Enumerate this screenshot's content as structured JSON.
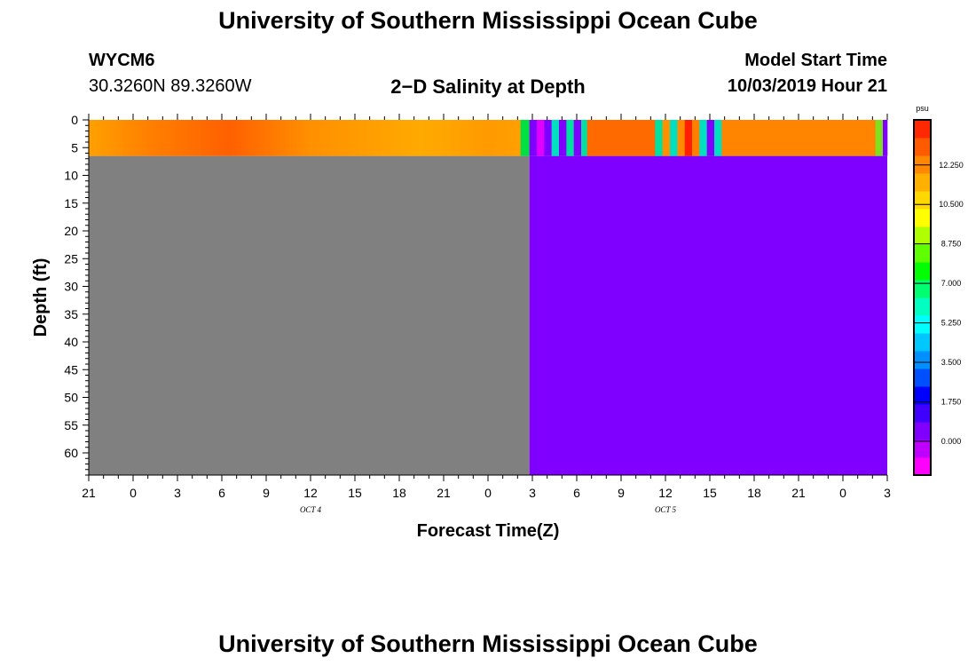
{
  "header": {
    "main_title": "University of Southern Mississippi Ocean Cube",
    "station_id": "WYCM6",
    "station_coords": "30.3260N 89.3260W",
    "plot_title": "2−D Salinity at Depth",
    "model_start_label": "Model Start Time",
    "model_start_value": "10/03/2019 Hour 21"
  },
  "footer": {
    "bottom_title": "University of Southern Mississippi Ocean Cube"
  },
  "chart_data": {
    "type": "heatmap",
    "xlabel": "Forecast Time(Z)",
    "ylabel": "Depth (ft)",
    "x_tick_labels": [
      "21",
      "0",
      "3",
      "6",
      "9",
      "12",
      "15",
      "18",
      "21",
      "0",
      "3",
      "6",
      "9",
      "12",
      "15",
      "18",
      "21",
      "0",
      "3"
    ],
    "x_date_labels": [
      {
        "text": "OCT 4",
        "at_hour": 15
      },
      {
        "text": "OCT 5",
        "at_hour": 39
      }
    ],
    "x_range_hours": [
      0,
      54
    ],
    "y_tick_labels": [
      "0",
      "5",
      "10",
      "15",
      "20",
      "25",
      "30",
      "35",
      "40",
      "45",
      "50",
      "55",
      "60"
    ],
    "y_range_ft": [
      0,
      64
    ],
    "surface_layer_depth_ft": 6.5,
    "no_data_color": "#808080",
    "deep_fill_color": "#7f00ff",
    "deep_fill_start_hour": 29.8,
    "surface_segments": [
      {
        "start": 0,
        "end": 29.2,
        "color": "gradient"
      },
      {
        "start": 29.2,
        "end": 29.8,
        "color": "#00e040"
      },
      {
        "start": 29.8,
        "end": 30.3,
        "color": "#7f00ff"
      },
      {
        "start": 30.3,
        "end": 30.8,
        "color": "#e000ff"
      },
      {
        "start": 30.8,
        "end": 31.3,
        "color": "#7f00ff"
      },
      {
        "start": 31.3,
        "end": 31.8,
        "color": "#00e0c0"
      },
      {
        "start": 31.8,
        "end": 32.3,
        "color": "#7f00ff"
      },
      {
        "start": 32.3,
        "end": 32.8,
        "color": "#00e0a0"
      },
      {
        "start": 32.8,
        "end": 33.3,
        "color": "#7f00ff"
      },
      {
        "start": 33.3,
        "end": 33.7,
        "color": "#00e0a0"
      },
      {
        "start": 33.7,
        "end": 38.3,
        "color": "#ff6a00"
      },
      {
        "start": 38.3,
        "end": 38.8,
        "color": "#00e0a0"
      },
      {
        "start": 38.8,
        "end": 39.3,
        "color": "#ff9000"
      },
      {
        "start": 39.3,
        "end": 39.8,
        "color": "#00e0c0"
      },
      {
        "start": 39.8,
        "end": 40.3,
        "color": "#ff8c00"
      },
      {
        "start": 40.3,
        "end": 40.8,
        "color": "#ff2000"
      },
      {
        "start": 40.8,
        "end": 41.3,
        "color": "#ff8000"
      },
      {
        "start": 41.3,
        "end": 41.8,
        "color": "#00e0c0"
      },
      {
        "start": 41.8,
        "end": 42.3,
        "color": "#7f00ff"
      },
      {
        "start": 42.3,
        "end": 42.8,
        "color": "#00e0c0"
      },
      {
        "start": 42.8,
        "end": 53.2,
        "color": "#ff8400"
      },
      {
        "start": 53.2,
        "end": 53.7,
        "color": "#80e020"
      },
      {
        "start": 53.7,
        "end": 54,
        "color": "#7f00ff"
      }
    ],
    "surface_gradient": [
      {
        "hour": 0,
        "color": "#ffa000"
      },
      {
        "hour": 4,
        "color": "#ff8000"
      },
      {
        "hour": 9.5,
        "color": "#ff6000"
      },
      {
        "hour": 15,
        "color": "#ff9000"
      },
      {
        "hour": 22.5,
        "color": "#ffaa00"
      },
      {
        "hour": 27,
        "color": "#ff9a00"
      },
      {
        "hour": 29.2,
        "color": "#ffa000"
      }
    ],
    "colorbar": {
      "unit": "psu",
      "labels": [
        "12.250",
        "10.500",
        "8.750",
        "7.000",
        "5.250",
        "3.500",
        "1.750",
        "0.000"
      ],
      "label_values": [
        12.25,
        10.5,
        8.75,
        7.0,
        5.25,
        3.5,
        1.75,
        0.0
      ],
      "range": [
        -1.5,
        14.25
      ],
      "bands": [
        "#ff00ff",
        "#c000ff",
        "#7f00ff",
        "#4000ff",
        "#0000ff",
        "#0050ff",
        "#0090ff",
        "#00c8ff",
        "#00ffff",
        "#00ffc0",
        "#00ff70",
        "#00ff00",
        "#60ff00",
        "#b0ff00",
        "#ffff00",
        "#ffd800",
        "#ffb000",
        "#ff8800",
        "#ff5a00",
        "#ff2800"
      ]
    }
  }
}
